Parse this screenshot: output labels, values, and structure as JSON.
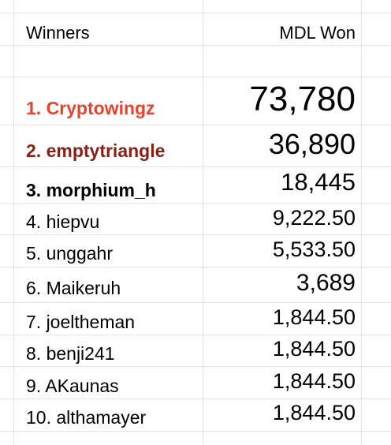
{
  "sheet": {
    "headers": {
      "winners": "Winners",
      "mdl_won": "MDL Won"
    },
    "rows": [
      {
        "name": "1. Cryptowingz",
        "value": "73,780"
      },
      {
        "name": "2. emptytriangle",
        "value": "36,890"
      },
      {
        "name": "3. morphium_h",
        "value": "18,445"
      },
      {
        "name": "4. hiepvu",
        "value": "9,222.50"
      },
      {
        "name": "5. unggahr",
        "value": "5,533.50"
      },
      {
        "name": "6. Maikeruh",
        "value": "3,689"
      },
      {
        "name": "7. joeltheman",
        "value": "1,844.50"
      },
      {
        "name": "8. benji241",
        "value": "1,844.50"
      },
      {
        "name": "9. AKaunas",
        "value": "1,844.50"
      },
      {
        "name": "10. althamayer",
        "value": "1,844.50"
      }
    ]
  }
}
